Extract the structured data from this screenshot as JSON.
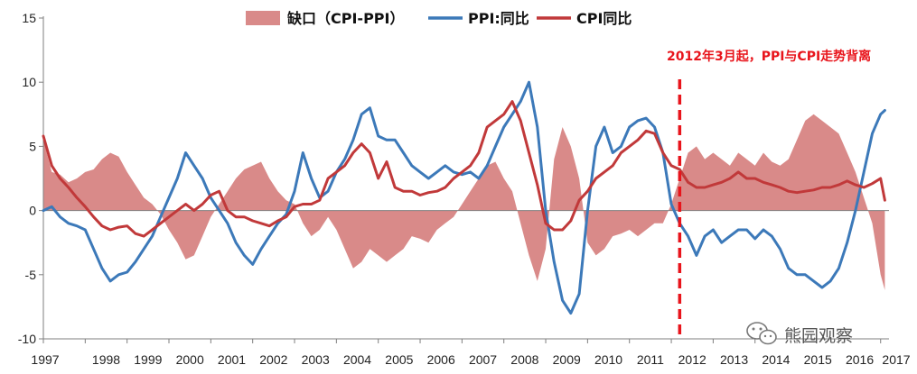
{
  "chart_data": {
    "type": "line",
    "title": "",
    "xlabel": "",
    "ylabel": "",
    "ylim": [
      -10,
      15
    ],
    "yticks": [
      -10,
      -5,
      0,
      5,
      10,
      15
    ],
    "xticks": [
      "1997",
      "1998",
      "1999",
      "2000",
      "2001",
      "2002",
      "2003",
      "2004",
      "2005",
      "2006",
      "2007",
      "2008",
      "2009",
      "2010",
      "2011",
      "2012",
      "2013",
      "2014",
      "2015",
      "2016",
      "2017"
    ],
    "xrange": [
      1997.0,
      2017.2
    ],
    "grid": false,
    "legend_position": "top",
    "series": [
      {
        "name": "缺口（CPI-PPI）",
        "kind": "area",
        "color": "#d98a89",
        "x": [
          1997.0,
          1997.2,
          1997.4,
          1997.6,
          1997.8,
          1998.0,
          1998.2,
          1998.4,
          1998.6,
          1998.8,
          1999.0,
          1999.2,
          1999.4,
          1999.6,
          1999.8,
          2000.0,
          2000.2,
          2000.4,
          2000.6,
          2000.8,
          2001.0,
          2001.2,
          2001.4,
          2001.6,
          2001.8,
          2002.0,
          2002.2,
          2002.4,
          2002.6,
          2002.8,
          2003.0,
          2003.2,
          2003.4,
          2003.6,
          2003.8,
          2004.0,
          2004.2,
          2004.4,
          2004.6,
          2004.8,
          2005.0,
          2005.2,
          2005.4,
          2005.6,
          2005.8,
          2006.0,
          2006.2,
          2006.4,
          2006.6,
          2006.8,
          2007.0,
          2007.2,
          2007.4,
          2007.6,
          2007.8,
          2008.0,
          2008.2,
          2008.4,
          2008.6,
          2008.8,
          2009.0,
          2009.2,
          2009.4,
          2009.6,
          2009.8,
          2010.0,
          2010.2,
          2010.4,
          2010.6,
          2010.8,
          2011.0,
          2011.2,
          2011.4,
          2011.6,
          2011.8,
          2012.0,
          2012.2,
          2012.4,
          2012.6,
          2012.8,
          2013.0,
          2013.2,
          2013.4,
          2013.6,
          2013.8,
          2014.0,
          2014.2,
          2014.4,
          2014.6,
          2014.8,
          2015.0,
          2015.2,
          2015.4,
          2015.6,
          2015.8,
          2016.0,
          2016.2,
          2016.4,
          2016.6,
          2016.8,
          2017.0,
          2017.1
        ],
        "values": [
          5.5,
          3.0,
          2.8,
          2.2,
          2.5,
          3.0,
          3.2,
          4.0,
          4.5,
          4.2,
          3.0,
          2.0,
          1.0,
          0.5,
          -0.3,
          -1.5,
          -2.5,
          -3.8,
          -3.5,
          -2.0,
          -0.5,
          0.5,
          1.5,
          2.5,
          3.2,
          3.5,
          3.8,
          2.5,
          1.5,
          0.8,
          0.5,
          -1.0,
          -2.0,
          -1.5,
          -0.5,
          -1.5,
          -3.0,
          -4.5,
          -4.0,
          -3.0,
          -3.5,
          -4.0,
          -3.5,
          -3.0,
          -2.0,
          -2.2,
          -2.5,
          -1.5,
          -1.0,
          -0.5,
          0.5,
          1.5,
          2.5,
          3.5,
          3.8,
          2.5,
          1.5,
          -1.0,
          -3.5,
          -5.5,
          -3.0,
          4.0,
          6.5,
          5.0,
          2.5,
          -2.5,
          -3.5,
          -3.0,
          -2.0,
          -1.8,
          -1.5,
          -2.0,
          -1.5,
          -1.0,
          -1.0,
          0.5,
          2.5,
          4.5,
          5.0,
          4.0,
          4.5,
          4.0,
          3.5,
          4.5,
          4.0,
          3.5,
          4.5,
          3.8,
          3.5,
          4.0,
          5.5,
          7.0,
          7.5,
          7.0,
          6.5,
          6.0,
          4.5,
          3.0,
          1.0,
          -1.0,
          -5.0,
          -6.2
        ]
      },
      {
        "name": "PPI:同比",
        "kind": "line",
        "color": "#3c79b9",
        "x": [
          1997.0,
          1997.2,
          1997.4,
          1997.6,
          1997.8,
          1998.0,
          1998.2,
          1998.4,
          1998.6,
          1998.8,
          1999.0,
          1999.2,
          1999.4,
          1999.6,
          1999.8,
          2000.0,
          2000.2,
          2000.4,
          2000.6,
          2000.8,
          2001.0,
          2001.2,
          2001.4,
          2001.6,
          2001.8,
          2002.0,
          2002.2,
          2002.4,
          2002.6,
          2002.8,
          2003.0,
          2003.2,
          2003.4,
          2003.6,
          2003.8,
          2004.0,
          2004.2,
          2004.4,
          2004.6,
          2004.8,
          2005.0,
          2005.2,
          2005.4,
          2005.6,
          2005.8,
          2006.0,
          2006.2,
          2006.4,
          2006.6,
          2006.8,
          2007.0,
          2007.2,
          2007.4,
          2007.6,
          2007.8,
          2008.0,
          2008.2,
          2008.4,
          2008.6,
          2008.8,
          2009.0,
          2009.2,
          2009.4,
          2009.6,
          2009.8,
          2010.0,
          2010.2,
          2010.4,
          2010.6,
          2010.8,
          2011.0,
          2011.2,
          2011.4,
          2011.6,
          2011.8,
          2012.0,
          2012.2,
          2012.4,
          2012.6,
          2012.8,
          2013.0,
          2013.2,
          2013.4,
          2013.6,
          2013.8,
          2014.0,
          2014.2,
          2014.4,
          2014.6,
          2014.8,
          2015.0,
          2015.2,
          2015.4,
          2015.6,
          2015.8,
          2016.0,
          2016.2,
          2016.4,
          2016.6,
          2016.8,
          2017.0,
          2017.1
        ],
        "values": [
          0.0,
          0.3,
          -0.5,
          -1.0,
          -1.2,
          -1.5,
          -3.0,
          -4.5,
          -5.5,
          -5.0,
          -4.8,
          -4.0,
          -3.0,
          -2.0,
          -0.5,
          1.0,
          2.5,
          4.5,
          3.5,
          2.5,
          1.0,
          0.0,
          -1.0,
          -2.5,
          -3.5,
          -4.2,
          -3.0,
          -2.0,
          -1.0,
          -0.3,
          1.5,
          4.5,
          2.5,
          1.0,
          1.5,
          3.0,
          4.0,
          5.5,
          7.5,
          8.0,
          5.8,
          5.5,
          5.5,
          4.5,
          3.5,
          3.0,
          2.5,
          3.0,
          3.5,
          3.0,
          2.8,
          3.0,
          2.5,
          3.5,
          5.0,
          6.5,
          7.5,
          8.5,
          10.0,
          6.5,
          0.0,
          -4.0,
          -7.0,
          -8.0,
          -6.5,
          0.0,
          5.0,
          6.5,
          4.5,
          5.0,
          6.5,
          7.0,
          7.2,
          6.5,
          4.5,
          0.5,
          -1.0,
          -2.0,
          -3.5,
          -2.0,
          -1.5,
          -2.5,
          -2.0,
          -1.5,
          -1.5,
          -2.2,
          -1.5,
          -2.0,
          -3.0,
          -4.5,
          -5.0,
          -5.0,
          -5.5,
          -6.0,
          -5.5,
          -4.5,
          -2.5,
          0.0,
          3.0,
          6.0,
          7.5,
          7.8
        ]
      },
      {
        "name": "CPI同比",
        "kind": "line",
        "color": "#c1393a",
        "x": [
          1997.0,
          1997.2,
          1997.4,
          1997.6,
          1997.8,
          1998.0,
          1998.2,
          1998.4,
          1998.6,
          1998.8,
          1999.0,
          1999.2,
          1999.4,
          1999.6,
          1999.8,
          2000.0,
          2000.2,
          2000.4,
          2000.6,
          2000.8,
          2001.0,
          2001.2,
          2001.4,
          2001.6,
          2001.8,
          2002.0,
          2002.2,
          2002.4,
          2002.6,
          2002.8,
          2003.0,
          2003.2,
          2003.4,
          2003.6,
          2003.8,
          2004.0,
          2004.2,
          2004.4,
          2004.6,
          2004.8,
          2005.0,
          2005.2,
          2005.4,
          2005.6,
          2005.8,
          2006.0,
          2006.2,
          2006.4,
          2006.6,
          2006.8,
          2007.0,
          2007.2,
          2007.4,
          2007.6,
          2007.8,
          2008.0,
          2008.2,
          2008.4,
          2008.6,
          2008.8,
          2009.0,
          2009.2,
          2009.4,
          2009.6,
          2009.8,
          2010.0,
          2010.2,
          2010.4,
          2010.6,
          2010.8,
          2011.0,
          2011.2,
          2011.4,
          2011.6,
          2011.8,
          2012.0,
          2012.2,
          2012.4,
          2012.6,
          2012.8,
          2013.0,
          2013.2,
          2013.4,
          2013.6,
          2013.8,
          2014.0,
          2014.2,
          2014.4,
          2014.6,
          2014.8,
          2015.0,
          2015.2,
          2015.4,
          2015.6,
          2015.8,
          2016.0,
          2016.2,
          2016.4,
          2016.6,
          2016.8,
          2017.0,
          2017.1
        ],
        "values": [
          5.8,
          3.5,
          2.5,
          1.8,
          1.0,
          0.3,
          -0.5,
          -1.2,
          -1.5,
          -1.3,
          -1.2,
          -1.8,
          -2.0,
          -1.5,
          -1.0,
          -0.5,
          0.0,
          0.5,
          0.0,
          0.5,
          1.2,
          1.5,
          0.0,
          -0.5,
          -0.5,
          -0.8,
          -1.0,
          -1.2,
          -0.8,
          -0.5,
          0.3,
          0.5,
          0.5,
          0.8,
          2.5,
          3.0,
          3.5,
          4.5,
          5.2,
          4.5,
          2.5,
          3.8,
          1.8,
          1.5,
          1.5,
          1.2,
          1.4,
          1.5,
          1.8,
          2.5,
          3.0,
          3.5,
          4.5,
          6.5,
          7.0,
          7.5,
          8.5,
          7.0,
          4.5,
          2.0,
          -1.0,
          -1.5,
          -1.5,
          -0.8,
          0.8,
          1.5,
          2.5,
          3.0,
          3.5,
          4.5,
          5.0,
          5.5,
          6.2,
          6.0,
          4.5,
          3.5,
          3.2,
          2.2,
          1.8,
          1.8,
          2.0,
          2.2,
          2.5,
          3.0,
          2.5,
          2.5,
          2.2,
          2.0,
          1.8,
          1.5,
          1.4,
          1.5,
          1.6,
          1.8,
          1.8,
          2.0,
          2.3,
          2.0,
          1.8,
          2.1,
          2.5,
          0.8
        ]
      }
    ],
    "annotations": [
      {
        "text": "2012年3月起，PPI与CPI走势背离",
        "x": 2012.2,
        "style": "dashed-vertical-line",
        "color": "#e8141b"
      }
    ]
  },
  "watermark": {
    "text": "熊园观察",
    "icon": "wechat-logo-icon"
  }
}
